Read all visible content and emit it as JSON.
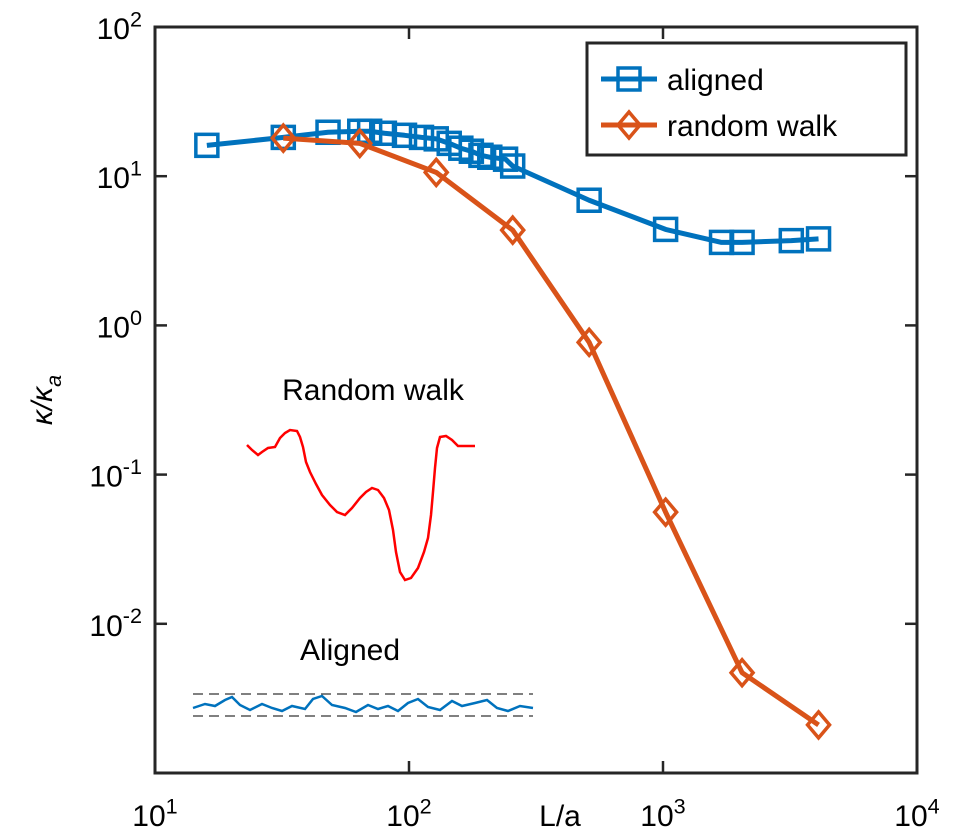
{
  "chart_data": {
    "type": "line",
    "log_x": true,
    "log_y": true,
    "xlabel": "L/a",
    "ylabel": "κ/κ_a",
    "xlim": [
      10,
      10000
    ],
    "xticks": [
      {
        "value": 10,
        "label": "10^1"
      },
      {
        "value": 100,
        "label": "10^2"
      },
      {
        "value": 1000,
        "label": "10^3"
      },
      {
        "value": 10000,
        "label": "10^4"
      }
    ],
    "ylim": [
      0.001,
      100
    ],
    "yticks": [
      {
        "value": 0.01,
        "label": "10^-2"
      },
      {
        "value": 0.1,
        "label": "10^-1"
      },
      {
        "value": 1,
        "label": "10^0"
      },
      {
        "value": 10,
        "label": "10^1"
      },
      {
        "value": 100,
        "label": "10^2"
      }
    ],
    "legend": "top-right",
    "annotations": [
      "Random walk",
      "Aligned"
    ],
    "series": [
      {
        "name": "aligned",
        "color": "#0072BD",
        "marker": "square",
        "x": [
          16,
          32,
          48,
          64,
          70,
          80,
          96,
          112,
          128,
          144,
          160,
          176,
          192,
          208,
          240,
          256,
          512,
          1024,
          1700,
          2048,
          3200,
          4096
        ],
        "values": [
          16.1,
          18.2,
          19.7,
          20,
          20,
          19.4,
          18.8,
          18.2,
          17.8,
          16.6,
          15.4,
          14.7,
          13.8,
          13.4,
          13,
          11.7,
          6.9,
          4.4,
          3.6,
          3.6,
          3.7,
          3.8
        ]
      },
      {
        "name": "random walk",
        "color": "#D95319",
        "marker": "diamond",
        "x": [
          32,
          64,
          128,
          256,
          512,
          1024,
          2048,
          4096
        ],
        "values": [
          18,
          16.6,
          10.6,
          4.35,
          0.77,
          0.056,
          0.0047,
          0.0021
        ]
      }
    ]
  }
}
